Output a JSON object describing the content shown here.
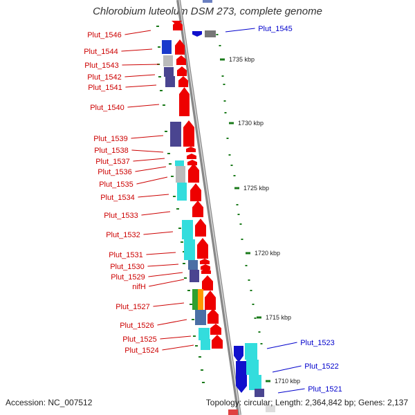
{
  "title": "Chlorobium luteolum DSM 273, complete genome",
  "accession": "Accession: NC_007512",
  "topology": "Topology: circular; Length: 2,364,842 bp; Genes: 2,137",
  "colors": {
    "label_left": "#cc0000",
    "label_right": "#0000cc",
    "backbone": "#888888",
    "tick_mark": "#1a7a1a",
    "arrow_red": "#ee0000",
    "arrow_blue": "#1010cc",
    "navy": "#4a4590",
    "cyan": "#33dddd",
    "gray": "#bbbbbb",
    "steel": "#4a6fa5"
  },
  "ticks": [
    {
      "label": "1735 kbp"
    },
    {
      "label": "1730 kbp"
    },
    {
      "label": "1725 kbp"
    },
    {
      "label": "1720 kbp"
    },
    {
      "label": "1715 kbp"
    },
    {
      "label": "1710 kbp"
    }
  ],
  "left_labels": [
    "Plut_1546",
    "Plut_1544",
    "Plut_1543",
    "Plut_1542",
    "Plut_1541",
    "Plut_1540",
    "Plut_1539",
    "Plut_1538",
    "Plut_1537",
    "Plut_1536",
    "Plut_1535",
    "Plut_1534",
    "Plut_1533",
    "Plut_1532",
    "Plut_1531",
    "Plut_1530",
    "Plut_1529",
    "nifH",
    "Plut_1527",
    "Plut_1526",
    "Plut_1525",
    "Plut_1524"
  ],
  "right_labels": [
    "Plut_1545",
    "Plut_1523",
    "Plut_1522",
    "Plut_1521"
  ]
}
